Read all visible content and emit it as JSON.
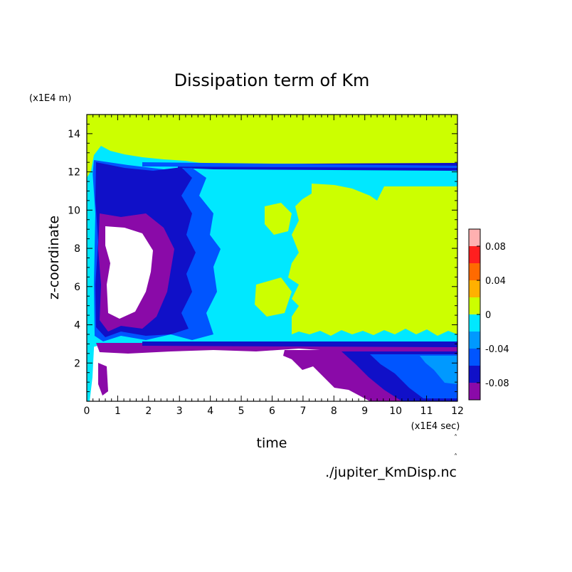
{
  "chart_data": {
    "type": "heatmap",
    "title": "Dissipation term of Km",
    "xlabel": "time",
    "ylabel": "z-coordinate",
    "x_unit": "(x1E4 sec)",
    "y_unit": "(x1E4 m)",
    "xlim": [
      0,
      12
    ],
    "ylim": [
      0,
      15
    ],
    "x_ticks": [
      "0",
      "1",
      "2",
      "3",
      "4",
      "5",
      "6",
      "7",
      "8",
      "9",
      "10",
      "11",
      "12"
    ],
    "y_ticks": [
      "2",
      "4",
      "6",
      "8",
      "10",
      "12",
      "14"
    ],
    "colorbar_ticks": [
      "0.08",
      "0.04",
      "0",
      "-0.04",
      "-0.08"
    ],
    "colorbar_levels": [
      {
        "range": [
          0.08,
          0.1
        ],
        "color": "#ffb0b0"
      },
      {
        "range": [
          0.06,
          0.08
        ],
        "color": "#ff1f1f"
      },
      {
        "range": [
          0.04,
          0.06
        ],
        "color": "#ff6a00"
      },
      {
        "range": [
          0.02,
          0.04
        ],
        "color": "#ffb000"
      },
      {
        "range": [
          0.0,
          0.02
        ],
        "color": "#ccff00"
      },
      {
        "range": [
          -0.02,
          0.0
        ],
        "color": "#00e8ff"
      },
      {
        "range": [
          -0.04,
          -0.02
        ],
        "color": "#0099ff"
      },
      {
        "range": [
          -0.06,
          -0.04
        ],
        "color": "#0055ff"
      },
      {
        "range": [
          -0.08,
          -0.06
        ],
        "color": "#1010c8"
      },
      {
        "range": [
          -0.1,
          -0.08
        ],
        "color": "#8a0aa8"
      }
    ],
    "below_range_color": "#ffffff",
    "regions": {
      "upper_layer": {
        "z": [
          12.5,
          15
        ],
        "level": "0 to 0.02"
      },
      "inversion_band": {
        "z": [
          12.1,
          12.4
        ],
        "level": "-0.08 to -0.06"
      },
      "middle_layer": {
        "z": [
          3.0,
          12.1
        ],
        "level": "-0.02 to 0 with patches of 0 to 0.02 after t=6.5"
      },
      "early_turbulence": {
        "t": [
          0.3,
          3.5
        ],
        "z": [
          3,
          12.5
        ],
        "level": "-0.1 to -0.06, white core below -0.1"
      },
      "lower_layer": {
        "z": [
          0,
          3.0
        ],
        "level": "below -0.1 (white), shifting to -0.08 ... -0.04 after t=7"
      }
    }
  },
  "footer": {
    "filename": "./jupiter_KmDisp.nc"
  }
}
